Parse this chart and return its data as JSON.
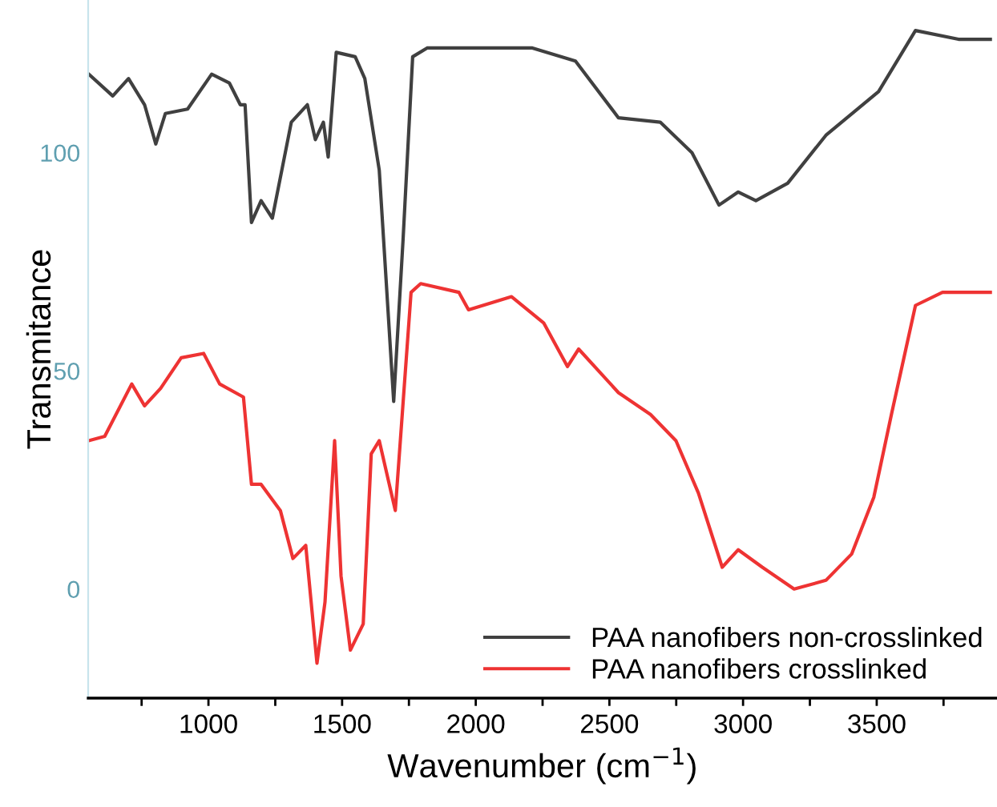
{
  "chart_data": {
    "type": "line",
    "xlabel": "Wavenumber (cm$^{−1}$)",
    "ylabel": "Transmitance",
    "xlim": [
      550,
      3950
    ],
    "ylim": [
      -25,
      135
    ],
    "xticks": [
      {
        "value": 750,
        "label": null
      },
      1000,
      {
        "value": 1250,
        "label": null
      },
      1500,
      {
        "value": 1750,
        "label": null
      },
      2000,
      {
        "value": 2250,
        "label": null
      },
      2500,
      {
        "value": 2750,
        "label": null
      },
      3000,
      {
        "value": 3250,
        "label": null
      },
      3500,
      {
        "value": 3750,
        "label": null
      }
    ],
    "yticks": [
      0,
      50,
      100
    ],
    "grid": false,
    "legend": "bottom right",
    "series": [
      {
        "name": "PAA nanofibers non-crosslinked",
        "color": "#404040",
        "x": [
          552,
          642,
          701,
          761,
          803,
          839,
          922,
          1012,
          1078,
          1119,
          1137,
          1161,
          1197,
          1239,
          1310,
          1370,
          1400,
          1430,
          1448,
          1478,
          1549,
          1585,
          1639,
          1693,
          1728,
          1764,
          1818,
          1955,
          2015,
          2212,
          2373,
          2534,
          2690,
          2809,
          2910,
          2982,
          3048,
          3167,
          3310,
          3507,
          3645,
          3806,
          3925
        ],
        "values": [
          118,
          113,
          117,
          111,
          102,
          109,
          110,
          118,
          116,
          111,
          111,
          84,
          89,
          85,
          107,
          111,
          103,
          107,
          99,
          123,
          122,
          117,
          96,
          43,
          80,
          122,
          124,
          124,
          124,
          124,
          121,
          108,
          107,
          100,
          88,
          91,
          89,
          93,
          104,
          114,
          128,
          126,
          126
        ]
      },
      {
        "name": "PAA nanofibers crosslinked",
        "color": "#ee3333",
        "x": [
          552,
          612,
          713,
          761,
          821,
          898,
          982,
          1042,
          1131,
          1161,
          1197,
          1269,
          1316,
          1364,
          1406,
          1436,
          1472,
          1496,
          1531,
          1579,
          1609,
          1639,
          1699,
          1758,
          1794,
          1937,
          1973,
          2134,
          2254,
          2343,
          2385,
          2534,
          2654,
          2749,
          2833,
          2922,
          2982,
          3072,
          3191,
          3310,
          3406,
          3489,
          3555,
          3609,
          3645,
          3746,
          3925
        ],
        "values": [
          34,
          35,
          47,
          42,
          46,
          53,
          54,
          47,
          44,
          24,
          24,
          18,
          7,
          10,
          -17,
          -3,
          34,
          3,
          -14,
          -8,
          31,
          34,
          18,
          68,
          70,
          68,
          64,
          67,
          61,
          51,
          55,
          45,
          40,
          34,
          22,
          5,
          9,
          5,
          0,
          2,
          8,
          21,
          40,
          55,
          65,
          68,
          68
        ]
      }
    ]
  }
}
